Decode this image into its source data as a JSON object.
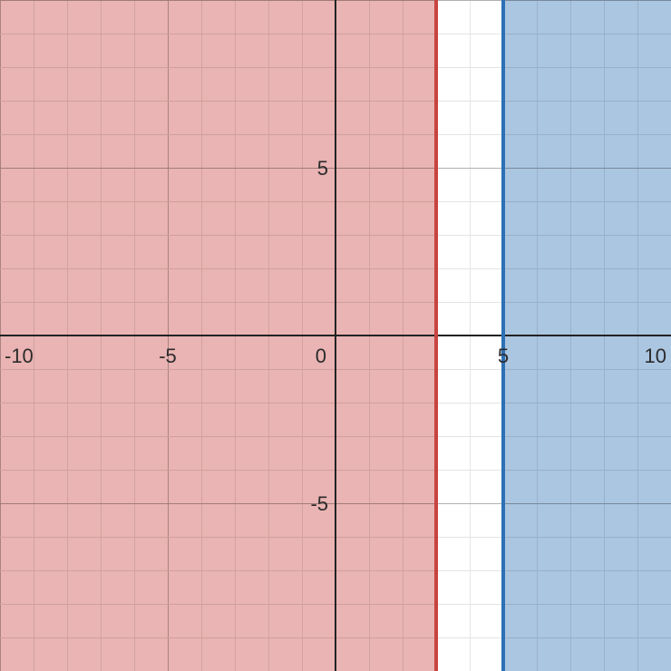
{
  "chart_data": {
    "type": "inequality-graph",
    "xlim": [
      -10,
      10
    ],
    "ylim": [
      -10,
      10
    ],
    "grid": true,
    "minor_grid_step": 1,
    "major_grid_step": 5,
    "x_tick_labels": [
      {
        "value": -10,
        "label": "-10"
      },
      {
        "value": -5,
        "label": "-5"
      },
      {
        "value": 5,
        "label": "5"
      },
      {
        "value": 10,
        "label": "10"
      }
    ],
    "y_tick_labels": [
      {
        "value": 5,
        "label": "5"
      },
      {
        "value": -5,
        "label": "-5"
      }
    ],
    "origin_label": "0",
    "regions": [
      {
        "kind": "x_lte",
        "boundary": 3,
        "color": "#c74440",
        "fill_opacity": 0.4
      },
      {
        "kind": "x_gte",
        "boundary": 5,
        "color": "#2d70b3",
        "fill_opacity": 0.4
      }
    ],
    "colors": {
      "axis": "#222222",
      "minor_grid": "#e3e3e3",
      "major_grid": "#b0b0b0",
      "red": "#c74440",
      "blue": "#2d70b3"
    }
  }
}
